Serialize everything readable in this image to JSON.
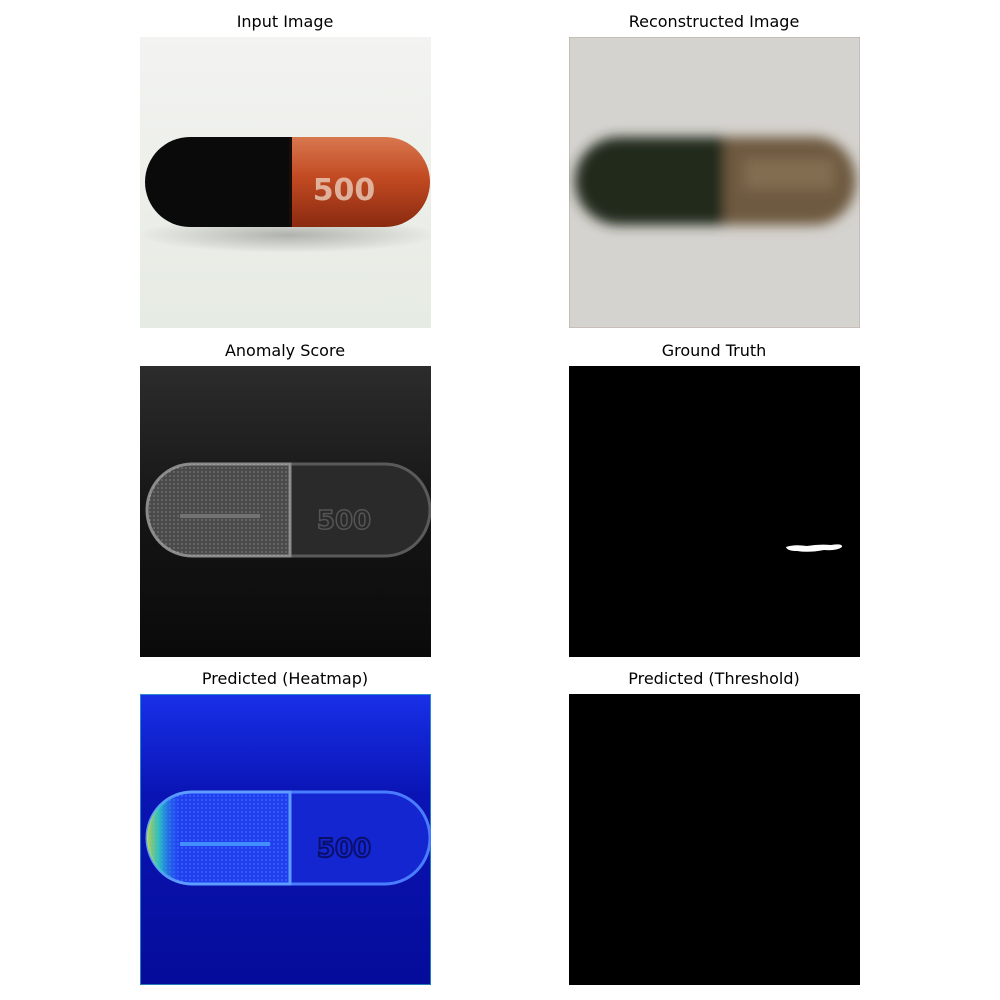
{
  "figure": {
    "panels": [
      {
        "title": "Input Image"
      },
      {
        "title": "Reconstructed Image"
      },
      {
        "title": "Anomaly Score"
      },
      {
        "title": "Ground Truth"
      },
      {
        "title": "Predicted (Heatmap)"
      },
      {
        "title": "Predicted (Threshold)"
      }
    ],
    "capsule_print": "500",
    "colors": {
      "background": "#ffffff",
      "capsule_black": "#0b0b0b",
      "capsule_orange": "#c4502a",
      "heatmap_base": "#0a10c8",
      "mask": "#000000"
    }
  }
}
